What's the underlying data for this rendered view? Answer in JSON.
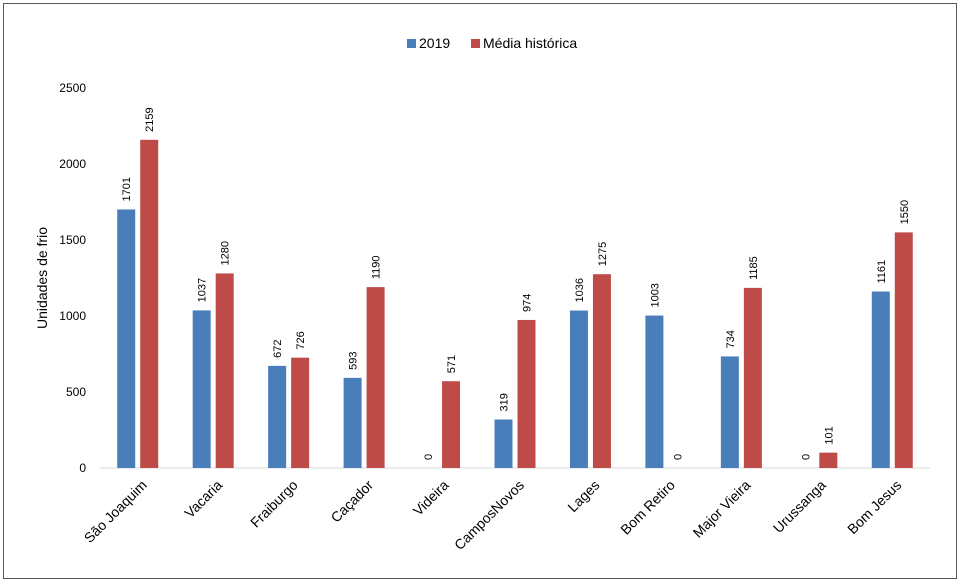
{
  "chart_data": {
    "type": "bar",
    "categories": [
      "São Joaquim",
      "Vacaria",
      "Fraiburgo",
      "Caçador",
      "Videira",
      "CamposNovos",
      "Lages",
      "Bom Retiro",
      "Major Vieira",
      "Urussanga",
      "Bom Jesus"
    ],
    "series": [
      {
        "name": "2019",
        "color": "#4a7ebb",
        "values": [
          1701,
          1037,
          672,
          593,
          0,
          319,
          1036,
          1003,
          734,
          0,
          1161
        ]
      },
      {
        "name": "Média histórica",
        "color": "#be4b48",
        "values": [
          2159,
          1280,
          726,
          1190,
          571,
          974,
          1275,
          0,
          1185,
          101,
          1550
        ]
      }
    ],
    "title": "",
    "xlabel": "",
    "ylabel": "Unidades de frio",
    "ylim": [
      0,
      2500
    ],
    "yticks": [
      0,
      500,
      1000,
      1500,
      2000,
      2500
    ],
    "legend_position": "top-center",
    "grid": false,
    "data_labels": true
  }
}
